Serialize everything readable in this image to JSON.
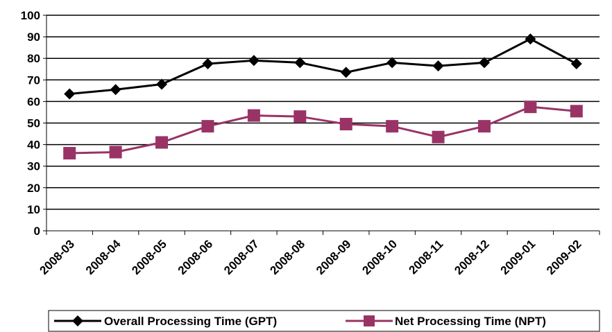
{
  "chart_data": {
    "type": "line",
    "title": "",
    "xlabel": "",
    "ylabel": "",
    "categories": [
      "2008-03",
      "2008-04",
      "2008-05",
      "2008-06",
      "2008-07",
      "2008-08",
      "2008-09",
      "2008-10",
      "2008-11",
      "2008-12",
      "2009-01",
      "2009-02"
    ],
    "ylim": [
      0,
      100
    ],
    "yticks": [
      "0",
      "10",
      "20",
      "30",
      "40",
      "50",
      "60",
      "70",
      "80",
      "90",
      "100"
    ],
    "grid": true,
    "legend_position": "bottom",
    "series": [
      {
        "name": "Overall Processing Time (GPT)",
        "color": "#000000",
        "marker": "diamond",
        "values": [
          63.5,
          65.5,
          68,
          77.5,
          79,
          78,
          73.5,
          78,
          76.5,
          78,
          89,
          77.5
        ]
      },
      {
        "name": "Net Processing Time (NPT)",
        "color": "#993366",
        "marker": "square",
        "values": [
          36,
          36.5,
          41,
          48.5,
          53.5,
          53,
          49.5,
          48.5,
          43.5,
          48.5,
          57.5,
          55.5
        ]
      }
    ]
  }
}
